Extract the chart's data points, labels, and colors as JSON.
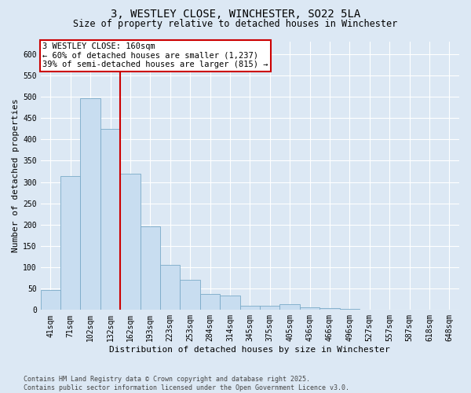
{
  "title_line1": "3, WESTLEY CLOSE, WINCHESTER, SO22 5LA",
  "title_line2": "Size of property relative to detached houses in Winchester",
  "xlabel": "Distribution of detached houses by size in Winchester",
  "ylabel": "Number of detached properties",
  "categories": [
    "41sqm",
    "71sqm",
    "102sqm",
    "132sqm",
    "162sqm",
    "193sqm",
    "223sqm",
    "253sqm",
    "284sqm",
    "314sqm",
    "345sqm",
    "375sqm",
    "405sqm",
    "436sqm",
    "466sqm",
    "496sqm",
    "527sqm",
    "557sqm",
    "587sqm",
    "618sqm",
    "648sqm"
  ],
  "values": [
    47,
    314,
    496,
    425,
    320,
    196,
    105,
    70,
    38,
    33,
    10,
    10,
    13,
    7,
    5,
    3,
    1,
    0,
    0,
    1,
    1
  ],
  "bar_color": "#c8ddf0",
  "bar_edge_color": "#7aaac8",
  "red_line_x": 3.5,
  "red_line_color": "#cc0000",
  "ylim_max": 630,
  "yticks": [
    0,
    50,
    100,
    150,
    200,
    250,
    300,
    350,
    400,
    450,
    500,
    550,
    600
  ],
  "bg_color": "#dce8f4",
  "grid_color": "#ffffff",
  "annotation_title": "3 WESTLEY CLOSE: 160sqm",
  "annotation_line1": "← 60% of detached houses are smaller (1,237)",
  "annotation_line2": "39% of semi-detached houses are larger (815) →",
  "annotation_box_edge": "#cc0000",
  "footer_line1": "Contains HM Land Registry data © Crown copyright and database right 2025.",
  "footer_line2": "Contains public sector information licensed under the Open Government Licence v3.0.",
  "title_fontsize": 10,
  "subtitle_fontsize": 8.5,
  "ylabel_fontsize": 8,
  "xlabel_fontsize": 8,
  "tick_fontsize": 7,
  "annotation_fontsize": 7.5,
  "footer_fontsize": 6
}
